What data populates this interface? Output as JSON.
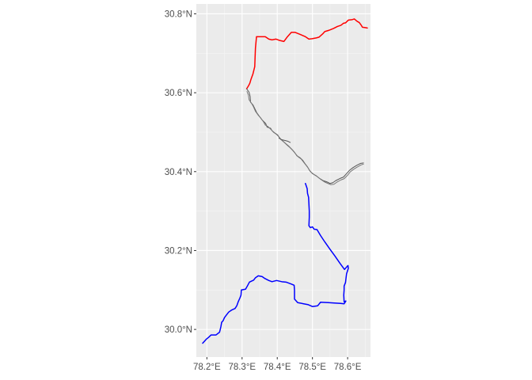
{
  "chart_data": {
    "type": "line",
    "title": "",
    "xlabel": "",
    "ylabel": "",
    "xlim": [
      78.17,
      78.665
    ],
    "ylim": [
      29.93,
      30.825
    ],
    "grid": true,
    "legend": "none",
    "x_ticks": [
      {
        "value": 78.2,
        "label": "78.2°E"
      },
      {
        "value": 78.3,
        "label": "78.3°E"
      },
      {
        "value": 78.4,
        "label": "78.4°E"
      },
      {
        "value": 78.5,
        "label": "78.5°E"
      },
      {
        "value": 78.6,
        "label": "78.6°E"
      }
    ],
    "y_ticks": [
      {
        "value": 30.0,
        "label": "30.0°N"
      },
      {
        "value": 30.2,
        "label": "30.2°N"
      },
      {
        "value": 30.4,
        "label": "30.4°N"
      },
      {
        "value": 30.6,
        "label": "30.6°N"
      },
      {
        "value": 30.8,
        "label": "30.8°N"
      }
    ],
    "series": [
      {
        "key": "upper-boundary",
        "color": "#ff0000",
        "width": 1.5,
        "points": [
          [
            78.313,
            30.61
          ],
          [
            78.318,
            30.617
          ],
          [
            78.322,
            30.624
          ],
          [
            78.325,
            30.633
          ],
          [
            78.331,
            30.648
          ],
          [
            78.336,
            30.666
          ],
          [
            78.337,
            30.69
          ],
          [
            78.338,
            30.713
          ],
          [
            78.341,
            30.742
          ],
          [
            78.351,
            30.742
          ],
          [
            78.366,
            30.742
          ],
          [
            78.376,
            30.736
          ],
          [
            78.385,
            30.734
          ],
          [
            78.396,
            30.736
          ],
          [
            78.405,
            30.733
          ],
          [
            78.419,
            30.73
          ],
          [
            78.429,
            30.742
          ],
          [
            78.44,
            30.753
          ],
          [
            78.451,
            30.753
          ],
          [
            78.467,
            30.747
          ],
          [
            78.48,
            30.742
          ],
          [
            78.49,
            30.736
          ],
          [
            78.499,
            30.737
          ],
          [
            78.511,
            30.739
          ],
          [
            78.519,
            30.741
          ],
          [
            78.529,
            30.749
          ],
          [
            78.535,
            30.755
          ],
          [
            78.546,
            30.758
          ],
          [
            78.56,
            30.763
          ],
          [
            78.571,
            30.768
          ],
          [
            78.581,
            30.771
          ],
          [
            78.588,
            30.776
          ],
          [
            78.594,
            30.777
          ],
          [
            78.602,
            30.784
          ],
          [
            78.612,
            30.785
          ],
          [
            78.619,
            30.787
          ],
          [
            78.627,
            30.781
          ],
          [
            78.633,
            30.778
          ],
          [
            78.638,
            30.772
          ],
          [
            78.642,
            30.766
          ],
          [
            78.65,
            30.765
          ],
          [
            78.656,
            30.764
          ]
        ]
      },
      {
        "key": "river-outer",
        "color": "#555555",
        "width": 1.0,
        "points": [
          [
            78.313,
            30.61
          ],
          [
            78.32,
            30.601
          ],
          [
            78.323,
            30.59
          ],
          [
            78.324,
            30.576
          ],
          [
            78.331,
            30.569
          ],
          [
            78.336,
            30.56
          ],
          [
            78.342,
            30.549
          ],
          [
            78.351,
            30.538
          ],
          [
            78.358,
            30.53
          ],
          [
            78.367,
            30.522
          ],
          [
            78.371,
            30.513
          ],
          [
            78.381,
            30.51
          ],
          [
            78.385,
            30.504
          ],
          [
            78.393,
            30.498
          ],
          [
            78.401,
            30.493
          ],
          [
            78.407,
            30.485
          ],
          [
            78.415,
            30.478
          ],
          [
            78.424,
            30.471
          ],
          [
            78.432,
            30.465
          ],
          [
            78.441,
            30.457
          ],
          [
            78.449,
            30.449
          ],
          [
            78.456,
            30.44
          ],
          [
            78.465,
            30.435
          ],
          [
            78.472,
            30.429
          ],
          [
            78.479,
            30.42
          ],
          [
            78.486,
            30.412
          ],
          [
            78.491,
            30.404
          ],
          [
            78.5,
            30.395
          ],
          [
            78.51,
            30.39
          ],
          [
            78.52,
            30.383
          ],
          [
            78.531,
            30.377
          ],
          [
            78.541,
            30.374
          ],
          [
            78.55,
            30.37
          ],
          [
            78.558,
            30.372
          ],
          [
            78.566,
            30.377
          ],
          [
            78.579,
            30.383
          ],
          [
            78.588,
            30.386
          ],
          [
            78.596,
            30.394
          ],
          [
            78.605,
            30.403
          ],
          [
            78.615,
            30.41
          ],
          [
            78.626,
            30.416
          ],
          [
            78.637,
            30.421
          ],
          [
            78.645,
            30.422
          ]
        ]
      },
      {
        "key": "river-inner",
        "color": "#777777",
        "width": 1.0,
        "points": [
          [
            78.314,
            30.603
          ],
          [
            78.318,
            30.594
          ],
          [
            78.32,
            30.582
          ],
          [
            78.327,
            30.573
          ],
          [
            78.332,
            30.565
          ],
          [
            78.338,
            30.553
          ],
          [
            78.346,
            30.543
          ],
          [
            78.353,
            30.536
          ],
          [
            78.361,
            30.526
          ],
          [
            78.366,
            30.518
          ],
          [
            78.374,
            30.514
          ],
          [
            78.382,
            30.507
          ],
          [
            78.389,
            30.5
          ],
          [
            78.397,
            30.495
          ],
          [
            78.404,
            30.489
          ],
          [
            78.411,
            30.481
          ],
          [
            78.42,
            30.474
          ],
          [
            78.428,
            30.467
          ],
          [
            78.436,
            30.461
          ],
          [
            78.445,
            30.453
          ],
          [
            78.452,
            30.445
          ],
          [
            78.46,
            30.437
          ],
          [
            78.468,
            30.432
          ],
          [
            78.474,
            30.425
          ],
          [
            78.482,
            30.416
          ],
          [
            78.488,
            30.409
          ],
          [
            78.494,
            30.4
          ],
          [
            78.504,
            30.393
          ],
          [
            78.514,
            30.387
          ],
          [
            78.524,
            30.38
          ],
          [
            78.534,
            30.374
          ],
          [
            78.544,
            30.37
          ],
          [
            78.552,
            30.367
          ],
          [
            78.561,
            30.368
          ],
          [
            78.569,
            30.373
          ],
          [
            78.581,
            30.379
          ],
          [
            78.59,
            30.382
          ],
          [
            78.599,
            30.39
          ],
          [
            78.607,
            30.399
          ],
          [
            78.617,
            30.406
          ],
          [
            78.628,
            30.412
          ],
          [
            78.638,
            30.417
          ],
          [
            78.645,
            30.419
          ]
        ]
      },
      {
        "key": "river-branch",
        "color": "#555555",
        "width": 1.0,
        "points": [
          [
            78.405,
            30.485
          ],
          [
            78.412,
            30.481
          ],
          [
            78.421,
            30.479
          ],
          [
            78.43,
            30.477
          ],
          [
            78.437,
            30.474
          ]
        ]
      },
      {
        "key": "lower-boundary",
        "color": "#0000ff",
        "width": 1.5,
        "points": [
          [
            78.48,
            30.37
          ],
          [
            78.485,
            30.357
          ],
          [
            78.486,
            30.345
          ],
          [
            78.489,
            30.335
          ],
          [
            78.49,
            30.318
          ],
          [
            78.491,
            30.3
          ],
          [
            78.491,
            30.284
          ],
          [
            78.49,
            30.263
          ],
          [
            78.494,
            30.258
          ],
          [
            78.5,
            30.26
          ],
          [
            78.505,
            30.254
          ],
          [
            78.513,
            30.253
          ],
          [
            78.523,
            30.238
          ],
          [
            78.535,
            30.222
          ],
          [
            78.55,
            30.203
          ],
          [
            78.564,
            30.186
          ],
          [
            78.578,
            30.168
          ],
          [
            78.591,
            30.152
          ],
          [
            78.601,
            30.162
          ],
          [
            78.602,
            30.155
          ],
          [
            78.597,
            30.141
          ],
          [
            78.595,
            30.127
          ],
          [
            78.594,
            30.119
          ],
          [
            78.59,
            30.11
          ],
          [
            78.59,
            30.1
          ],
          [
            78.589,
            30.087
          ],
          [
            78.59,
            30.07
          ],
          [
            78.595,
            30.072
          ],
          [
            78.59,
            30.065
          ],
          [
            78.58,
            30.066
          ],
          [
            78.562,
            30.067
          ],
          [
            78.545,
            30.068
          ],
          [
            78.523,
            30.069
          ],
          [
            78.515,
            30.06
          ],
          [
            78.5,
            30.058
          ],
          [
            78.487,
            30.063
          ],
          [
            78.475,
            30.065
          ],
          [
            78.458,
            30.068
          ],
          [
            78.449,
            30.077
          ],
          [
            78.449,
            30.099
          ],
          [
            78.448,
            30.112
          ],
          [
            78.44,
            30.115
          ],
          [
            78.425,
            30.12
          ],
          [
            78.413,
            30.121
          ],
          [
            78.398,
            30.124
          ],
          [
            78.385,
            30.121
          ],
          [
            78.376,
            30.124
          ],
          [
            78.365,
            30.129
          ],
          [
            78.357,
            30.134
          ],
          [
            78.346,
            30.136
          ],
          [
            78.338,
            30.131
          ],
          [
            78.333,
            30.125
          ],
          [
            78.321,
            30.12
          ],
          [
            78.315,
            30.11
          ],
          [
            78.31,
            30.102
          ],
          [
            78.298,
            30.1
          ],
          [
            78.297,
            30.087
          ],
          [
            78.294,
            30.08
          ],
          [
            78.289,
            30.07
          ],
          [
            78.285,
            30.06
          ],
          [
            78.28,
            30.053
          ],
          [
            78.27,
            30.049
          ],
          [
            78.262,
            30.044
          ],
          [
            78.255,
            30.036
          ],
          [
            78.25,
            30.03
          ],
          [
            78.246,
            30.022
          ],
          [
            78.242,
            30.018
          ],
          [
            78.24,
            30.008
          ],
          [
            78.238,
            30.0
          ],
          [
            78.236,
            29.993
          ],
          [
            78.226,
            29.986
          ],
          [
            78.212,
            29.986
          ],
          [
            78.205,
            29.98
          ],
          [
            78.198,
            29.975
          ],
          [
            78.193,
            29.97
          ],
          [
            78.188,
            29.965
          ]
        ]
      }
    ]
  }
}
